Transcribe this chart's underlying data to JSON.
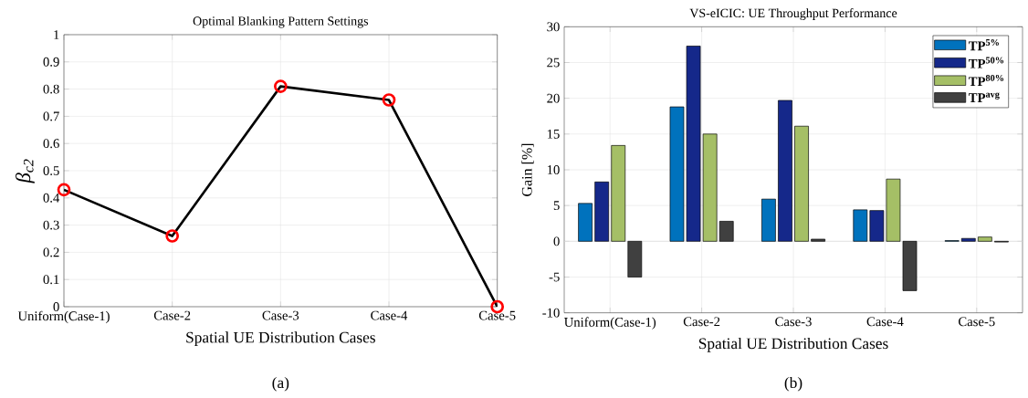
{
  "chart_data": [
    {
      "type": "line",
      "title": "Optimal Blanking Pattern Settings",
      "xlabel": "Spatial UE Distribution Cases",
      "ylabel": "β$_{c2}$",
      "categories": [
        "Uniform(Case-1)",
        "Case-2",
        "Case-3",
        "Case-4",
        "Case-5"
      ],
      "series": [
        {
          "color": "#000000",
          "values": [
            0.43,
            0.26,
            0.81,
            0.76,
            0.0
          ]
        }
      ],
      "marker": "circle",
      "ylim": [
        0,
        1
      ],
      "yticks": [
        0,
        0.1,
        0.2,
        0.3,
        0.4,
        0.5,
        0.6,
        0.7,
        0.8,
        0.9,
        1
      ],
      "grid": true,
      "legend": false,
      "annotations": [
        "(a)"
      ]
    },
    {
      "type": "bar",
      "title": "VS-eICIC: UE Throughput Performance",
      "xlabel": "Spatial UE Distribution Cases",
      "ylabel": "Gain [%]",
      "categories": [
        "Uniform(Case-1)",
        "Case-2",
        "Case-3",
        "Case-4",
        "Case-5"
      ],
      "series": [
        {
          "name": "TP$^{5%}$",
          "color": "#0072bd",
          "values": [
            5.3,
            18.8,
            5.9,
            4.4,
            0.1
          ]
        },
        {
          "name": "TP$^{50%}$",
          "color": "#15288a",
          "values": [
            8.3,
            27.3,
            19.7,
            4.3,
            0.4
          ]
        },
        {
          "name": "TP$^{80%}$",
          "color": "#a5bf66",
          "values": [
            13.4,
            15.0,
            16.1,
            8.7,
            0.6
          ]
        },
        {
          "name": "TP$^{avg}$",
          "color": "#404040",
          "values": [
            -5.0,
            2.8,
            0.3,
            -6.9,
            -0.1
          ]
        }
      ],
      "ylim": [
        -10,
        30
      ],
      "yticks": [
        -10,
        -5,
        0,
        5,
        10,
        15,
        20,
        25,
        30
      ],
      "grid": true,
      "legend": "top right",
      "annotations": [
        "(b)"
      ]
    }
  ]
}
